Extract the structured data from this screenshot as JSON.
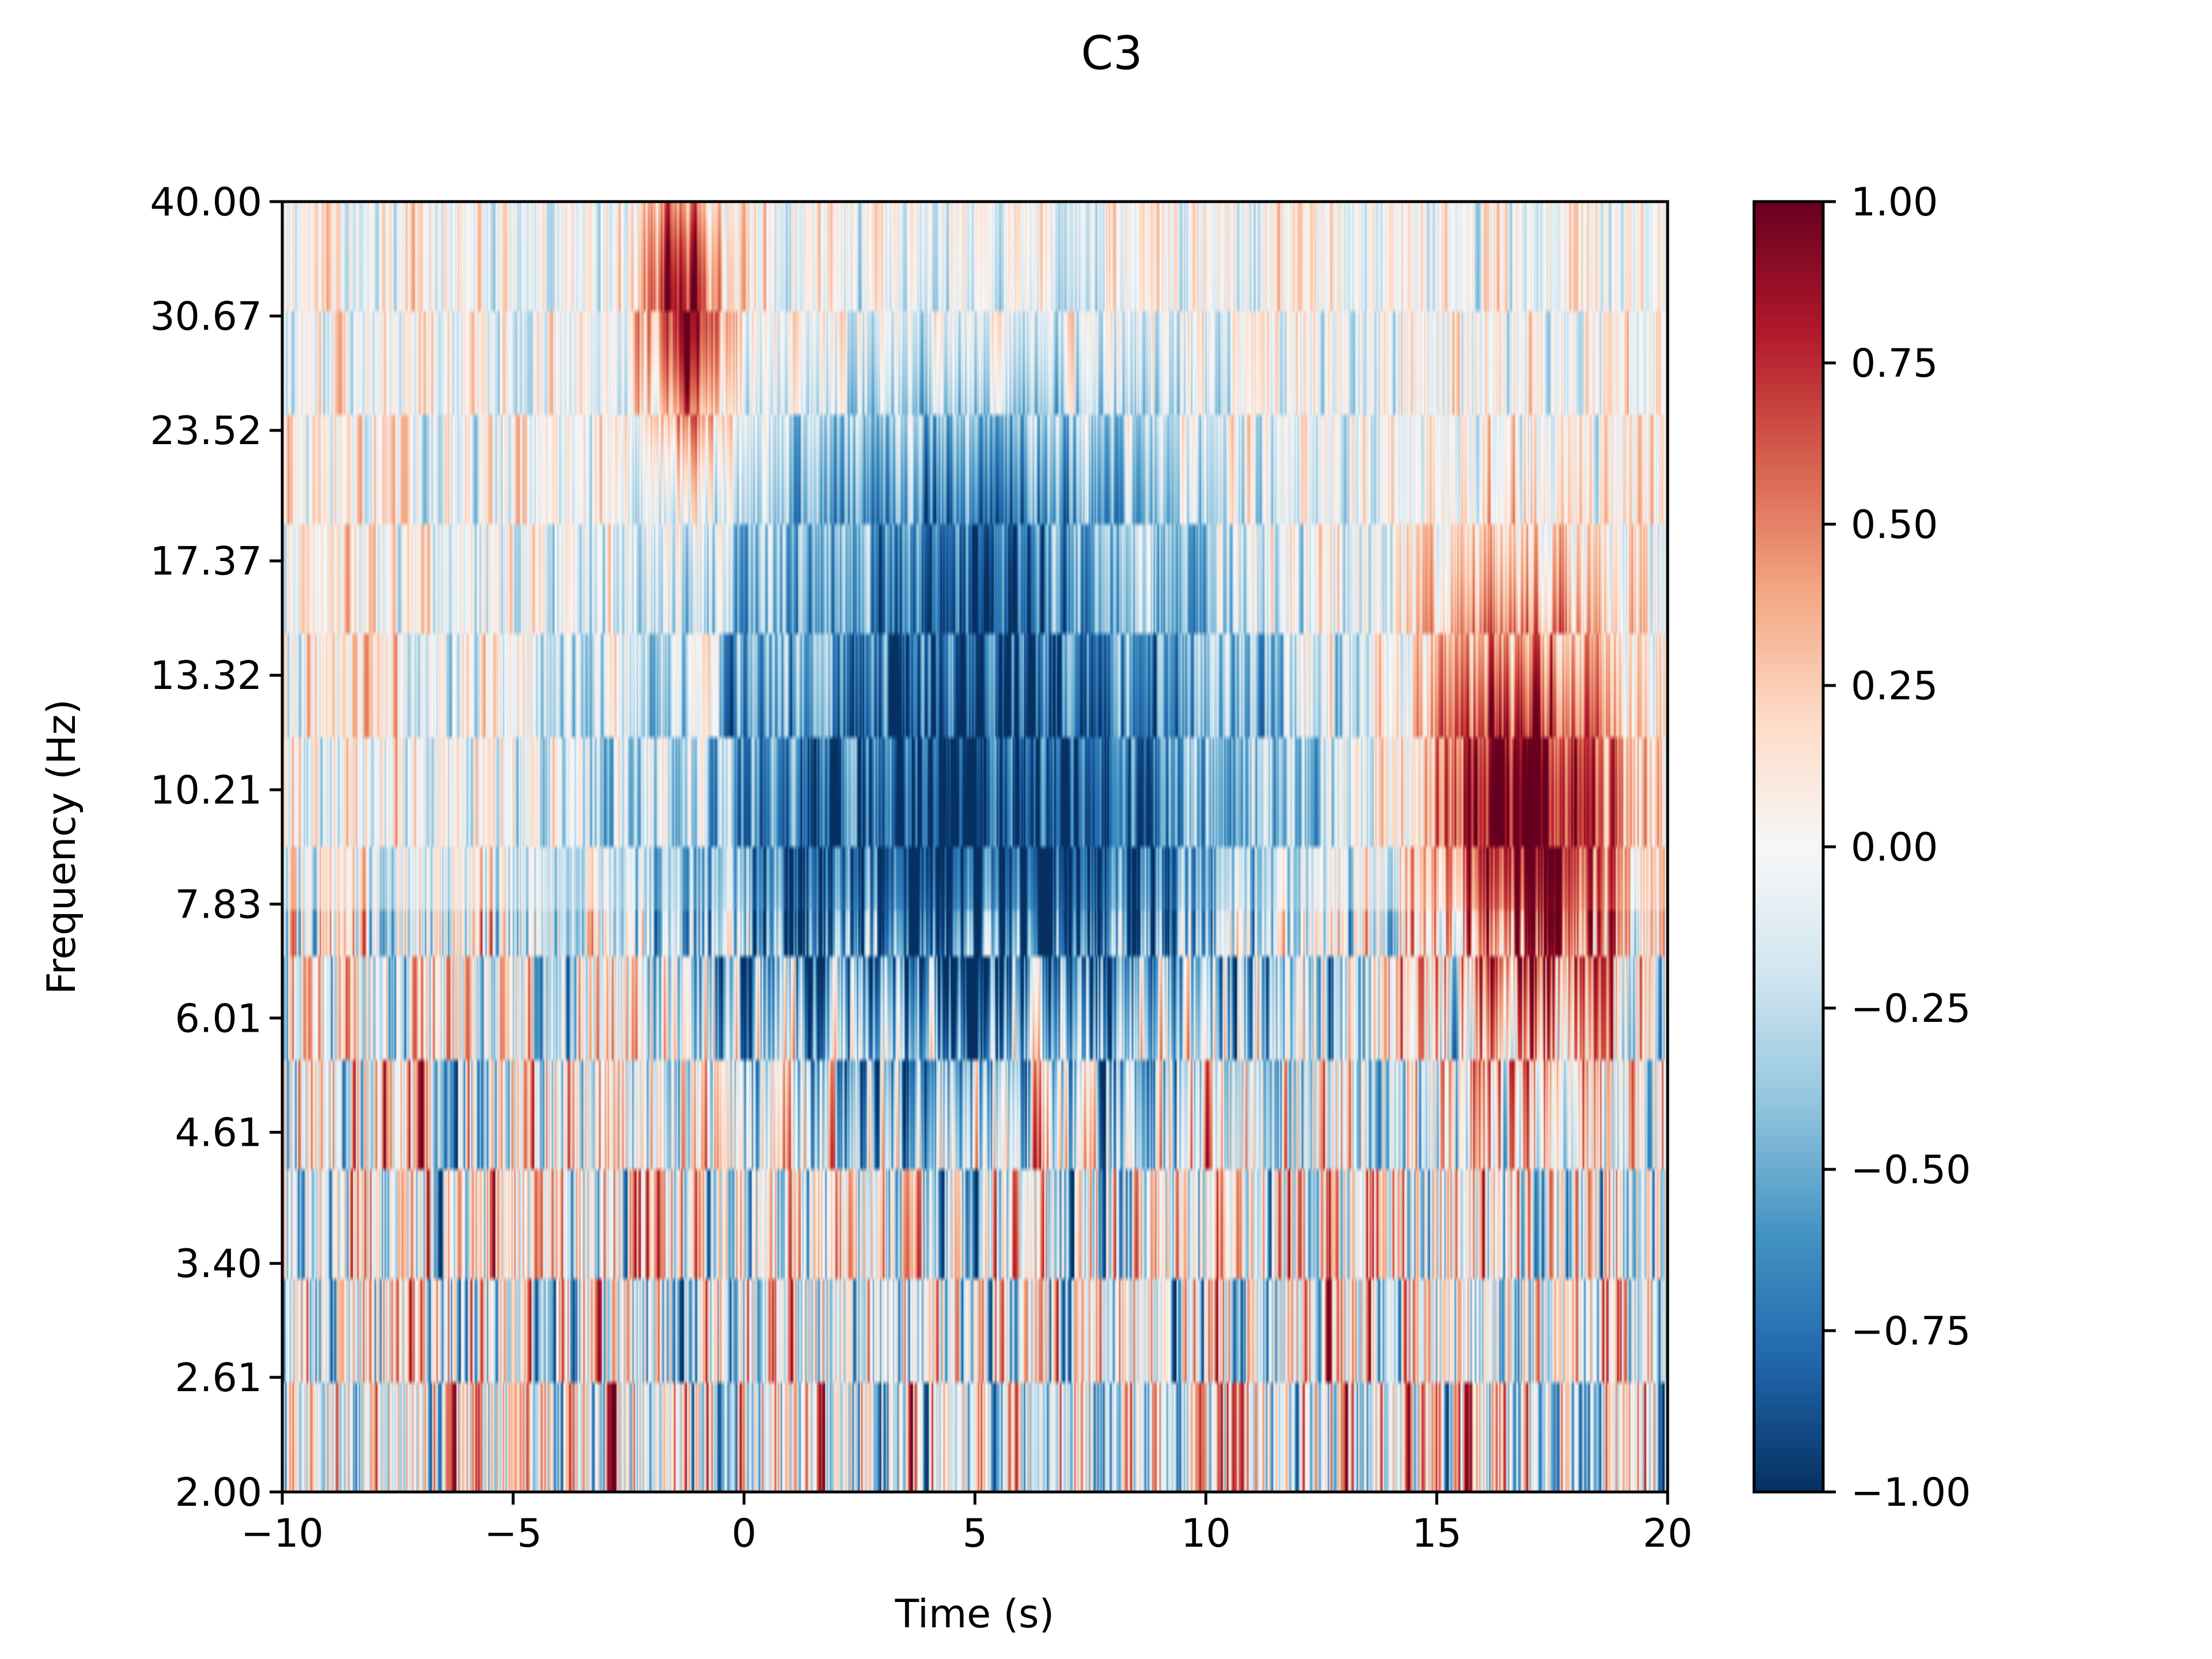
{
  "chart_data": {
    "type": "heatmap",
    "title": "C3",
    "xlabel": "Time (s)",
    "ylabel": "Frequency (Hz)",
    "xlim": [
      -10,
      20
    ],
    "ylim": [
      2.0,
      40.0
    ],
    "yscale": "log",
    "x_ticks": [
      -10,
      -5,
      0,
      5,
      10,
      15,
      20
    ],
    "x_tick_labels": [
      "−10",
      "−5",
      "0",
      "5",
      "10",
      "15",
      "20"
    ],
    "y_ticks": [
      2.0,
      2.61,
      3.4,
      4.61,
      6.01,
      7.83,
      10.21,
      13.32,
      17.37,
      23.52,
      30.67,
      40.0
    ],
    "y_tick_labels": [
      "2.00",
      "2.61",
      "3.40",
      "4.61",
      "6.01",
      "7.83",
      "10.21",
      "13.32",
      "17.37",
      "23.52",
      "30.67",
      "40.00"
    ],
    "colormap": "RdBu_r",
    "color_range": [
      -1.0,
      1.0
    ],
    "colorbar": {
      "ticks": [
        1.0,
        0.75,
        0.5,
        0.25,
        0.0,
        -0.25,
        -0.5,
        -0.75,
        -1.0
      ],
      "tick_labels": [
        "1.00",
        "0.75",
        "0.50",
        "0.25",
        "0.00",
        "−0.25",
        "−0.50",
        "−0.75",
        "−1.00"
      ]
    },
    "features": [
      {
        "t_range": [
          0,
          10
        ],
        "f_range": [
          6.0,
          13.3
        ],
        "value": -0.85
      },
      {
        "t_range": [
          1,
          9
        ],
        "f_range": [
          13.3,
          25.0
        ],
        "value": -0.5
      },
      {
        "t_range": [
          15,
          18.5
        ],
        "f_range": [
          6.5,
          14.0
        ],
        "value": 0.9
      },
      {
        "t_range": [
          -2,
          -0.5
        ],
        "f_range": [
          24.0,
          40.0
        ],
        "value": 0.8
      }
    ]
  }
}
